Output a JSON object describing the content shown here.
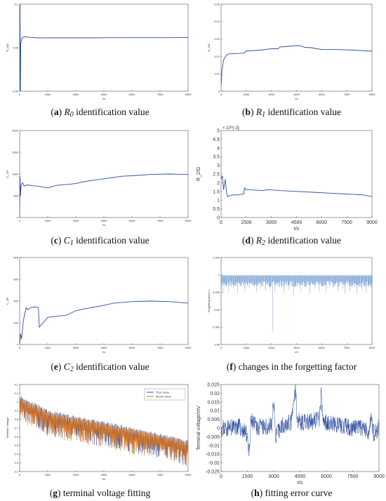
{
  "captions": {
    "a": {
      "letter": "a",
      "sym": "R",
      "sub": "0",
      "text": " identification value"
    },
    "b": {
      "letter": "b",
      "sym": "R",
      "sub": "1",
      "text": " identification value"
    },
    "c": {
      "letter": "c",
      "sym": "C",
      "sub": "1",
      "text": " identification value"
    },
    "d": {
      "letter": "d",
      "sym": "R",
      "sub": "2",
      "text": " identification value"
    },
    "e": {
      "letter": "e",
      "sym": "C",
      "sub": "2",
      "text": " identification value"
    },
    "f": {
      "letter": "f",
      "sym": "",
      "sub": "",
      "text": " changes in the forgetting factor"
    },
    "g": {
      "letter": "g",
      "sym": "",
      "sub": "",
      "text": " terminal voltage fitting"
    },
    "h": {
      "letter": "h",
      "sym": "",
      "sub": "",
      "text": " fitting error curve"
    }
  },
  "chart_data": [
    {
      "id": "a",
      "type": "line",
      "xlabel": "t/s",
      "ylabel": "R_0/Ω",
      "xlim": [
        0,
        9000
      ],
      "ylim": [
        0.06,
        0.1
      ],
      "xticks": [
        0,
        1500,
        3000,
        4500,
        6000,
        7500,
        9000
      ],
      "yticks": [
        0.06,
        0.07,
        0.08,
        0.09,
        0.1
      ],
      "ytick_labels": [
        "0.06",
        "",
        "0.08",
        "",
        "0.1"
      ],
      "color": "#2c4e9c",
      "series": [
        {
          "x": [
            0,
            20,
            40,
            60,
            120,
            250,
            500,
            1000,
            2000,
            3000,
            4000,
            5000,
            6000,
            7000,
            8000,
            9000
          ],
          "y": [
            0.06,
            0.1,
            0.06,
            0.082,
            0.0845,
            0.085,
            0.0848,
            0.0845,
            0.0845,
            0.0845,
            0.0845,
            0.0846,
            0.0846,
            0.0846,
            0.0846,
            0.0847
          ]
        }
      ]
    },
    {
      "id": "b",
      "type": "line",
      "xlabel": "t/s",
      "ylabel": "R_1/Ω",
      "xlim": [
        0,
        9000
      ],
      "ylim": [
        0,
        0.05
      ],
      "xticks": [
        0,
        1500,
        3000,
        4500,
        6000,
        7500,
        9000
      ],
      "yticks": [
        0,
        0.01,
        0.02,
        0.03,
        0.04,
        0.05
      ],
      "ytick_labels": [
        "0",
        "0.01",
        "0.02",
        "0.03",
        "0.04",
        "0.05"
      ],
      "color": "#2c4e9c",
      "series": [
        {
          "x": [
            0,
            50,
            150,
            300,
            450,
            600,
            1000,
            1400,
            1500,
            2000,
            2500,
            3000,
            3400,
            3500,
            4000,
            4500,
            4700,
            5000,
            5400,
            5600,
            6000,
            7000,
            8000,
            9000
          ],
          "y": [
            0.003,
            0.012,
            0.018,
            0.0205,
            0.0215,
            0.0215,
            0.0217,
            0.022,
            0.0232,
            0.0234,
            0.0238,
            0.0244,
            0.0244,
            0.0254,
            0.0258,
            0.0262,
            0.0262,
            0.0252,
            0.025,
            0.0246,
            0.024,
            0.0239,
            0.0236,
            0.023
          ]
        }
      ]
    },
    {
      "id": "c",
      "type": "line",
      "xlabel": "t/s",
      "ylabel": "C_1/F",
      "xlim": [
        0,
        9000
      ],
      "ylim": [
        0,
        2000
      ],
      "xticks": [
        0,
        1500,
        3000,
        4500,
        6000,
        7500,
        9000
      ],
      "yticks": [
        0,
        500,
        1000,
        1500,
        2000
      ],
      "ytick_labels": [
        "0",
        "500",
        "1000",
        "1500",
        "2000"
      ],
      "color": "#2c4e9c",
      "series": [
        {
          "x": [
            0,
            20,
            40,
            80,
            150,
            250,
            400,
            700,
            1000,
            1500,
            2000,
            2500,
            3000,
            3500,
            4000,
            4500,
            5000,
            5500,
            6000,
            7000,
            8000,
            9000
          ],
          "y": [
            0,
            950,
            500,
            750,
            800,
            720,
            750,
            730,
            720,
            680,
            740,
            760,
            780,
            830,
            860,
            890,
            920,
            950,
            960,
            990,
            1000,
            990
          ]
        }
      ]
    },
    {
      "id": "d",
      "type": "line",
      "xlabel": "t/s",
      "ylabel": "R_2/Ω",
      "multiplier": "× 10^{-3}",
      "xlim": [
        0,
        9000
      ],
      "ylim": [
        0,
        5
      ],
      "xticks": [
        0,
        1500,
        3000,
        4500,
        6000,
        7500,
        9000
      ],
      "yticks": [
        0,
        0.5,
        1,
        1.5,
        2,
        2.5,
        3,
        3.5,
        4,
        4.5,
        5
      ],
      "ytick_labels": [
        "0",
        "0.5",
        "1",
        "1.5",
        "2",
        "2.5",
        "3",
        "3.5",
        "4",
        "4.5",
        "5"
      ],
      "color": "#2c4e9c",
      "series": [
        {
          "x": [
            0,
            80,
            150,
            250,
            330,
            400,
            500,
            700,
            1000,
            1350,
            1400,
            1500,
            2500,
            2800,
            3500,
            4500,
            5500,
            6500,
            7500,
            8500,
            9000
          ],
          "y": [
            2.2,
            2.4,
            1.6,
            2.2,
            1.4,
            1.2,
            1.25,
            1.3,
            1.3,
            1.35,
            1.7,
            1.6,
            1.55,
            1.6,
            1.55,
            1.5,
            1.45,
            1.4,
            1.35,
            1.3,
            1.2
          ]
        }
      ]
    },
    {
      "id": "e",
      "type": "line",
      "xlabel": "t/s",
      "ylabel": "C_2/F",
      "xlim": [
        0,
        9000
      ],
      "ylim": [
        0,
        800
      ],
      "xticks": [
        0,
        1500,
        3000,
        4500,
        6000,
        7500,
        9000
      ],
      "yticks": [
        0,
        200,
        400,
        600,
        800
      ],
      "ytick_labels": [
        "0",
        "200",
        "400",
        "600",
        "800"
      ],
      "color": "#2c4e9c",
      "series": [
        {
          "x": [
            0,
            50,
            100,
            200,
            300,
            350,
            450,
            600,
            800,
            1000,
            1050,
            1300,
            1500,
            2000,
            2500,
            3000,
            3500,
            4000,
            4500,
            5000,
            6000,
            7000,
            8000,
            9000
          ],
          "y": [
            0,
            100,
            50,
            220,
            300,
            340,
            320,
            340,
            345,
            340,
            160,
            210,
            250,
            260,
            270,
            310,
            330,
            345,
            360,
            380,
            395,
            400,
            395,
            380
          ]
        }
      ]
    },
    {
      "id": "f",
      "type": "line",
      "xlabel": "t/s",
      "ylabel": "Forgetting factor λ",
      "xlim": [
        0,
        9000
      ],
      "ylim": [
        0.98,
        1.005
      ],
      "xticks": [
        0,
        1500,
        3000,
        4500,
        6000,
        7500,
        9000
      ],
      "yticks": [
        0.98,
        0.985,
        0.99,
        0.995,
        1,
        1.005
      ],
      "ytick_labels": [
        "0.98",
        "0.985",
        "0.99",
        "0.995",
        "1",
        "1.005"
      ],
      "color": "#5b8ac8",
      "series": [
        {
          "baseline": 0.9995,
          "dips": [
            [
              100,
              0.9946
            ],
            [
              200,
              0.9978
            ],
            [
              320,
              0.9967
            ],
            [
              450,
              0.9952
            ],
            [
              560,
              0.9985
            ],
            [
              720,
              0.996
            ],
            [
              850,
              0.998
            ],
            [
              980,
              0.9946
            ],
            [
              1120,
              0.997
            ],
            [
              1260,
              0.9983
            ],
            [
              1400,
              0.9955
            ],
            [
              1540,
              0.9975
            ],
            [
              1690,
              0.9962
            ],
            [
              1830,
              0.9985
            ],
            [
              1960,
              0.9969
            ],
            [
              2100,
              0.9952
            ],
            [
              2240,
              0.9978
            ],
            [
              2380,
              0.9964
            ],
            [
              2520,
              0.9984
            ],
            [
              2650,
              0.9955
            ],
            [
              2790,
              0.9972
            ],
            [
              2930,
              0.9962
            ],
            [
              3070,
              0.9838
            ],
            [
              3200,
              0.9951
            ],
            [
              3340,
              0.9976
            ],
            [
              3480,
              0.9962
            ],
            [
              3620,
              0.9983
            ],
            [
              3760,
              0.9948
            ],
            [
              3900,
              0.997
            ],
            [
              4040,
              0.9958
            ],
            [
              4180,
              0.9986
            ],
            [
              4320,
              0.994
            ],
            [
              4460,
              0.9967
            ],
            [
              4600,
              0.9979
            ],
            [
              4740,
              0.9955
            ],
            [
              4880,
              0.997
            ],
            [
              5020,
              0.9964
            ],
            [
              5160,
              0.9985
            ],
            [
              5300,
              0.9946
            ],
            [
              5440,
              0.9972
            ],
            [
              5580,
              0.996
            ],
            [
              5720,
              0.9983
            ],
            [
              5860,
              0.995
            ],
            [
              6000,
              0.9968
            ],
            [
              6140,
              0.9977
            ],
            [
              6280,
              0.995
            ],
            [
              6420,
              0.9972
            ],
            [
              6560,
              0.9988
            ],
            [
              6700,
              0.9961
            ],
            [
              6840,
              0.9976
            ],
            [
              6980,
              0.9955
            ],
            [
              7120,
              0.9983
            ],
            [
              7260,
              0.996
            ],
            [
              7400,
              0.9947
            ],
            [
              7540,
              0.997
            ],
            [
              7680,
              0.9952
            ],
            [
              7820,
              0.9981
            ],
            [
              7960,
              0.9965
            ],
            [
              8100,
              0.9945
            ],
            [
              8240,
              0.9972
            ],
            [
              8380,
              0.9958
            ],
            [
              8520,
              0.9982
            ],
            [
              8660,
              0.995
            ],
            [
              8800,
              0.9968
            ],
            [
              8940,
              0.9962
            ]
          ]
        }
      ]
    },
    {
      "id": "g",
      "type": "line",
      "xlabel": "t/s",
      "ylabel": "Terminal Voltage",
      "xlim": [
        0,
        9000
      ],
      "ylim": [
        3.2,
        4.2
      ],
      "xticks": [
        0,
        1500,
        3000,
        4500,
        6000,
        7500,
        9000
      ],
      "yticks": [
        3.2,
        3.3,
        3.4,
        3.5,
        3.6,
        3.7,
        3.8,
        3.9,
        4,
        4.1,
        4.2
      ],
      "ytick_labels": [
        "3.2",
        "3.3",
        "3.4",
        "3.5",
        "3.6",
        "3.7",
        "3.8",
        "3.9",
        "4",
        "4.1",
        "4.2"
      ],
      "legend": "top-right",
      "series": [
        {
          "name": "True Value",
          "color": "#2c4e9c",
          "trend": [
            [
              0,
              4.02
            ],
            [
              1500,
              3.85
            ],
            [
              3000,
              3.78
            ],
            [
              4500,
              3.72
            ],
            [
              6000,
              3.65
            ],
            [
              7500,
              3.58
            ],
            [
              9000,
              3.5
            ]
          ],
          "swing_up": 0.06,
          "swing_down": 0.2
        },
        {
          "name": "Model Value",
          "color": "#d9731e",
          "trend": [
            [
              0,
              4.0
            ],
            [
              1500,
              3.84
            ],
            [
              3000,
              3.77
            ],
            [
              4500,
              3.71
            ],
            [
              6000,
              3.64
            ],
            [
              7500,
              3.57
            ],
            [
              9000,
              3.49
            ]
          ],
          "swing_up": 0.06,
          "swing_down": 0.2
        }
      ]
    },
    {
      "id": "h",
      "type": "line",
      "xlabel": "t/s",
      "ylabel": "Terminal voltage/mV",
      "xlim": [
        0,
        9000
      ],
      "ylim": [
        -0.025,
        0.025
      ],
      "xticks": [
        0,
        1500,
        3000,
        4500,
        6000,
        7500,
        9000
      ],
      "yticks": [
        -0.025,
        -0.02,
        -0.015,
        -0.01,
        -0.005,
        0,
        0.005,
        0.01,
        0.015,
        0.02,
        0.025
      ],
      "ytick_labels": [
        "-0.025",
        "-0.02",
        "-0.015",
        "-0.01",
        "-0.005",
        "0",
        "0.005",
        "0.01",
        "0.015",
        "0.02",
        "0.025"
      ],
      "color": "#2c4e9c",
      "series": [
        {
          "trend": [
            [
              0,
              0
            ],
            [
              500,
              0
            ],
            [
              1000,
              0.001
            ],
            [
              1500,
              -0.004
            ],
            [
              1600,
              -0.018
            ],
            [
              1700,
              0.004
            ],
            [
              2000,
              0.001
            ],
            [
              2500,
              0.0
            ],
            [
              2900,
              0.002
            ],
            [
              3000,
              0.017
            ],
            [
              3100,
              -0.005
            ],
            [
              3500,
              0.002
            ],
            [
              4000,
              0.003
            ],
            [
              4250,
              0.022
            ],
            [
              4350,
              0.004
            ],
            [
              5000,
              0.003
            ],
            [
              5600,
              0.005
            ],
            [
              5700,
              0.019
            ],
            [
              5800,
              0.004
            ],
            [
              6500,
              0.002
            ],
            [
              7000,
              0.001
            ],
            [
              7500,
              0.0
            ],
            [
              8000,
              0.0
            ],
            [
              8400,
              -0.002
            ],
            [
              8550,
              0.006
            ],
            [
              8700,
              -0.003
            ],
            [
              9000,
              0.0
            ]
          ],
          "noise": 0.005
        }
      ]
    }
  ]
}
